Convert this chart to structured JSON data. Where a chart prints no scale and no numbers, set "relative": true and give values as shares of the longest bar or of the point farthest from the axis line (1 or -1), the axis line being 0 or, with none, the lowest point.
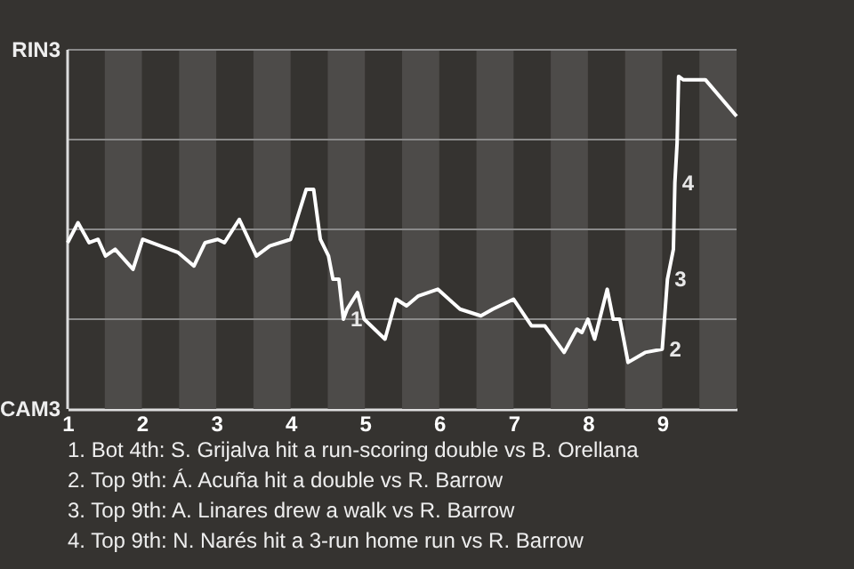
{
  "chart_data": {
    "type": "line",
    "relative": true,
    "x": [
      1.0,
      1.14,
      1.29,
      1.41,
      1.51,
      1.64,
      1.88,
      2.01,
      2.49,
      2.7,
      2.85,
      3.02,
      3.11,
      3.31,
      3.54,
      3.72,
      4.0,
      4.21,
      4.31,
      4.4,
      4.51,
      4.57,
      4.65,
      4.71,
      4.76,
      4.9,
      4.99,
      5.27,
      5.42,
      5.56,
      5.72,
      5.98,
      6.28,
      6.56,
      6.72,
      7.0,
      7.24,
      7.42,
      7.68,
      7.85,
      7.92,
      8.0,
      8.09,
      8.26,
      8.34,
      8.43,
      8.54,
      8.77,
      9.0,
      9.07,
      9.15,
      9.17,
      9.2,
      9.22,
      9.28,
      9.39,
      9.58,
      10.0
    ],
    "series": [
      {
        "color": "#ffffff",
        "values": [
          0.5,
          0.56,
          0.5,
          0.51,
          0.46,
          0.48,
          0.42,
          0.51,
          0.47,
          0.43,
          0.5,
          0.51,
          0.5,
          0.57,
          0.46,
          0.49,
          0.51,
          0.66,
          0.66,
          0.51,
          0.46,
          0.39,
          0.39,
          0.27,
          0.3,
          0.35,
          0.27,
          0.21,
          0.33,
          0.31,
          0.34,
          0.36,
          0.3,
          0.28,
          0.3,
          0.33,
          0.25,
          0.25,
          0.17,
          0.24,
          0.23,
          0.27,
          0.21,
          0.36,
          0.27,
          0.27,
          0.14,
          0.17,
          0.18,
          0.39,
          0.48,
          0.68,
          0.8,
          1,
          0.99,
          0.99,
          0.99,
          0.88
        ]
      }
    ],
    "xlim": [
      1,
      10
    ],
    "xticks": [
      1,
      2,
      3,
      4,
      5,
      6,
      7,
      8,
      9
    ],
    "ref_lines": [
      {
        "axis": "y",
        "value": 0.27,
        "color": "#8a8a8a"
      },
      {
        "axis": "y",
        "value": 0.54,
        "color": "#8a8a8a"
      },
      {
        "axis": "y",
        "value": 0.81,
        "color": "#8a8a8a"
      },
      {
        "axis": "y",
        "value": 1.08,
        "color": "#8a8a8a"
      }
    ],
    "bands": [
      {
        "axis": "x",
        "from": 1.5,
        "to": 2,
        "color": "#4d4b49"
      },
      {
        "axis": "x",
        "from": 2.5,
        "to": 3,
        "color": "#4d4b49"
      },
      {
        "axis": "x",
        "from": 3.5,
        "to": 4,
        "color": "#4d4b49"
      },
      {
        "axis": "x",
        "from": 4.5,
        "to": 5,
        "color": "#4d4b49"
      },
      {
        "axis": "x",
        "from": 5.5,
        "to": 6,
        "color": "#4d4b49"
      },
      {
        "axis": "x",
        "from": 6.5,
        "to": 7,
        "color": "#4d4b49"
      },
      {
        "axis": "x",
        "from": 7.5,
        "to": 8,
        "color": "#4d4b49"
      },
      {
        "axis": "x",
        "from": 8.5,
        "to": 9,
        "color": "#4d4b49"
      },
      {
        "axis": "x",
        "from": 9.5,
        "to": 10,
        "color": "#4d4b49"
      }
    ],
    "annotations": [
      "RIN3",
      "CAM3",
      {
        "text": "1",
        "x": 4.71,
        "y": 0.27
      },
      {
        "text": "2",
        "x": 9.0,
        "y": 0.18
      },
      {
        "text": "3",
        "x": 9.07,
        "y": 0.39
      },
      {
        "text": "4",
        "x": 9.17,
        "y": 0.68
      },
      "1. Bot 4th: S. Grijalva hit a run-scoring double vs B. Orellana",
      "2. Top 9th: Á. Acuña hit a double vs R. Barrow",
      "3. Top 9th: A. Linares drew a walk vs R. Barrow",
      "4. Top 9th: N. Narés hit a 3-run home run vs R. Barrow"
    ]
  }
}
